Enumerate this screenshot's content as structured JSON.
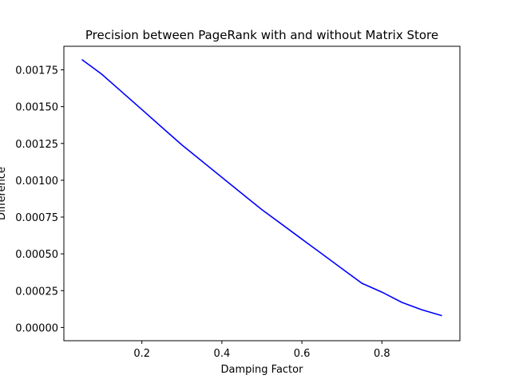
{
  "chart_data": {
    "type": "line",
    "title": "Precision between PageRank with and without Matrix Store",
    "xlabel": "Damping Factor",
    "ylabel": "Difference",
    "xlim": [
      0.0,
      1.0
    ],
    "ylim": [
      0.0,
      0.0019
    ],
    "x_ticks": [
      0.2,
      0.4,
      0.6,
      0.8
    ],
    "x_tick_labels": [
      "0.2",
      "0.4",
      "0.6",
      "0.8"
    ],
    "y_ticks": [
      0.0,
      0.00025,
      0.0005,
      0.00075,
      0.001,
      0.00125,
      0.0015,
      0.00175
    ],
    "y_tick_labels": [
      "0.00000",
      "0.00025",
      "0.00050",
      "0.00075",
      "0.00100",
      "0.00125",
      "0.00150",
      "0.00175"
    ],
    "grid": false,
    "series": [
      {
        "color": "#0000ff",
        "x": [
          0.05,
          0.1,
          0.15,
          0.2,
          0.25,
          0.3,
          0.35,
          0.4,
          0.45,
          0.5,
          0.55,
          0.6,
          0.65,
          0.7,
          0.75,
          0.8,
          0.85,
          0.9,
          0.95
        ],
        "y": [
          0.00182,
          0.00172,
          0.0016,
          0.00148,
          0.00136,
          0.00124,
          0.00113,
          0.00102,
          0.00091,
          0.0008,
          0.0007,
          0.0006,
          0.0005,
          0.0004,
          0.0003,
          0.00024,
          0.00017,
          0.00012,
          8e-05
        ]
      }
    ]
  }
}
